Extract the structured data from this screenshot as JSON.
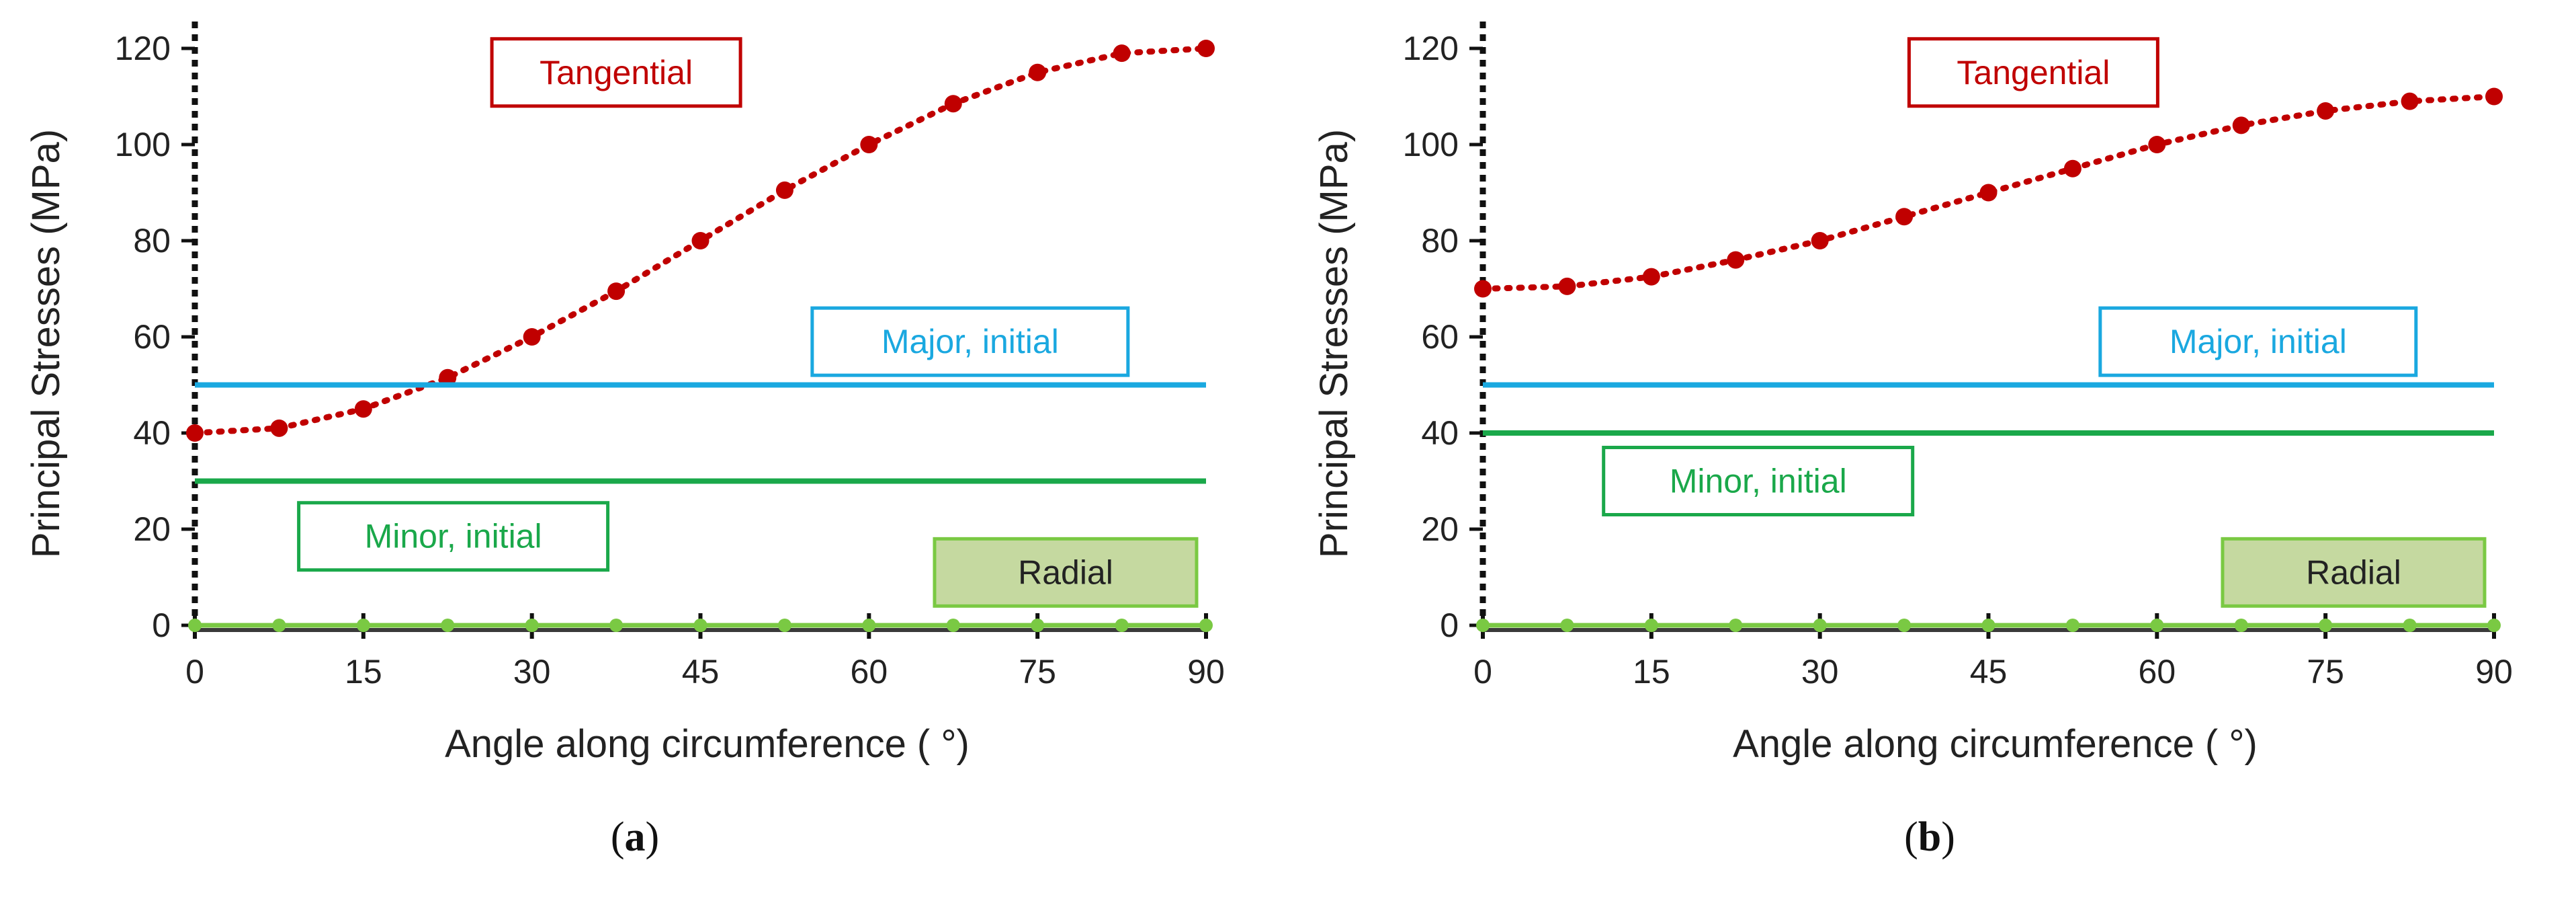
{
  "chart_data": [
    {
      "type": "line",
      "panel_label": "a",
      "xlabel": "Angle along circumference ( °)",
      "ylabel": "Principal  Stresses  (MPa)",
      "xlim": [
        0,
        90
      ],
      "ylim": [
        0,
        120
      ],
      "x_ticks": [
        0,
        15,
        30,
        45,
        60,
        75,
        90
      ],
      "y_ticks": [
        0,
        20,
        40,
        60,
        80,
        100,
        120
      ],
      "series": [
        {
          "name": "Tangential",
          "color": "#c00000",
          "style": "dotted-markers",
          "x": [
            0,
            7.5,
            15,
            22.5,
            30,
            37.5,
            45,
            52.5,
            60,
            67.5,
            75,
            82.5,
            90
          ],
          "y": [
            40,
            41,
            45,
            51.5,
            60,
            69.5,
            80,
            90.5,
            100,
            108.5,
            115,
            119,
            120
          ]
        },
        {
          "name": "Major, initial",
          "color": "#1aa8e0",
          "style": "solid",
          "x": [
            0,
            90
          ],
          "y": [
            50,
            50
          ]
        },
        {
          "name": "Minor, initial",
          "color": "#1aa84a",
          "style": "solid",
          "x": [
            0,
            90
          ],
          "y": [
            30,
            30
          ]
        },
        {
          "name": "Radial",
          "color": "#7ac943",
          "style": "solid-markers",
          "x": [
            0,
            7.5,
            15,
            22.5,
            30,
            37.5,
            45,
            52.5,
            60,
            67.5,
            75,
            82.5,
            90
          ],
          "y": [
            0,
            0,
            0,
            0,
            0,
            0,
            0,
            0,
            0,
            0,
            0,
            0,
            0
          ]
        }
      ],
      "annotations": [
        {
          "series": "Tangential",
          "x": 37.5,
          "y": 115,
          "fill": "#ffffff",
          "border": "#c00000",
          "text_color": "#c00000"
        },
        {
          "series": "Major, initial",
          "x": 69,
          "y": 59,
          "fill": "#ffffff",
          "border": "#1aa8e0",
          "text_color": "#1aa8e0"
        },
        {
          "series": "Minor, initial",
          "x": 23,
          "y": 18.5,
          "fill": "#ffffff",
          "border": "#1aa84a",
          "text_color": "#1aa84a"
        },
        {
          "series": "Radial",
          "x": 77.5,
          "y": 11,
          "fill": "#c5d9a0",
          "border": "#7ac943",
          "text_color": "#222222"
        }
      ]
    },
    {
      "type": "line",
      "panel_label": "b",
      "xlabel": "Angle along circumference ( °)",
      "ylabel": "Principal  Stresses  (MPa)",
      "xlim": [
        0,
        90
      ],
      "ylim": [
        0,
        120
      ],
      "x_ticks": [
        0,
        15,
        30,
        45,
        60,
        75,
        90
      ],
      "y_ticks": [
        0,
        20,
        40,
        60,
        80,
        100,
        120
      ],
      "series": [
        {
          "name": "Tangential",
          "color": "#c00000",
          "style": "dotted-markers",
          "x": [
            0,
            7.5,
            15,
            22.5,
            30,
            37.5,
            45,
            52.5,
            60,
            67.5,
            75,
            82.5,
            90
          ],
          "y": [
            70,
            70.5,
            72.5,
            76,
            80,
            85,
            90,
            95,
            100,
            104,
            107,
            109,
            110
          ]
        },
        {
          "name": "Major, initial",
          "color": "#1aa8e0",
          "style": "solid",
          "x": [
            0,
            90
          ],
          "y": [
            50,
            50
          ]
        },
        {
          "name": "Minor, initial",
          "color": "#1aa84a",
          "style": "solid",
          "x": [
            0,
            90
          ],
          "y": [
            40,
            40
          ]
        },
        {
          "name": "Radial",
          "color": "#7ac943",
          "style": "solid-markers",
          "x": [
            0,
            7.5,
            15,
            22.5,
            30,
            37.5,
            45,
            52.5,
            60,
            67.5,
            75,
            82.5,
            90
          ],
          "y": [
            0,
            0,
            0,
            0,
            0,
            0,
            0,
            0,
            0,
            0,
            0,
            0,
            0
          ]
        }
      ],
      "annotations": [
        {
          "series": "Tangential",
          "x": 49,
          "y": 115,
          "fill": "#ffffff",
          "border": "#c00000",
          "text_color": "#c00000"
        },
        {
          "series": "Major, initial",
          "x": 69,
          "y": 59,
          "fill": "#ffffff",
          "border": "#1aa8e0",
          "text_color": "#1aa8e0"
        },
        {
          "series": "Minor, initial",
          "x": 24.5,
          "y": 30,
          "fill": "#ffffff",
          "border": "#1aa84a",
          "text_color": "#1aa84a"
        },
        {
          "series": "Radial",
          "x": 77.5,
          "y": 11,
          "fill": "#c5d9a0",
          "border": "#7ac943",
          "text_color": "#222222"
        }
      ]
    }
  ]
}
